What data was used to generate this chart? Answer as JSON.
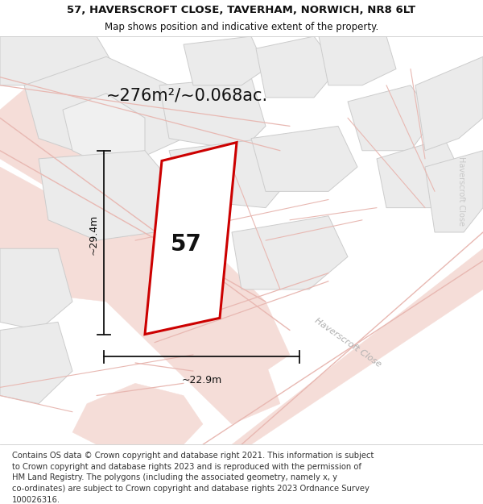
{
  "title_line1": "57, HAVERSCROFT CLOSE, TAVERHAM, NORWICH, NR8 6LT",
  "title_line2": "Map shows position and indicative extent of the property.",
  "area_text": "~276m²/~0.068ac.",
  "dim_height": "~29.4m",
  "dim_width": "~22.9m",
  "plot_number": "57",
  "footer_lines": [
    "Contains OS data © Crown copyright and database right 2021. This information is subject",
    "to Crown copyright and database rights 2023 and is reproduced with the permission of",
    "HM Land Registry. The polygons (including the associated geometry, namely x, y",
    "co-ordinates) are subject to Crown copyright and database rights 2023 Ordnance Survey",
    "100026316."
  ],
  "map_bg": "#f5eeec",
  "plot_fill": "#ffffff",
  "plot_edge": "#cc0000",
  "building_color": "#ebebeb",
  "building_edge": "#cccccc",
  "road_line_color": "#e8b8b2",
  "road_fill_color": "#f5ddd8",
  "dim_line_color": "#111111",
  "text_color": "#111111",
  "title_fontsize": 9.5,
  "subtitle_fontsize": 8.5,
  "area_fontsize": 15,
  "plot_number_fontsize": 20,
  "dim_fontsize": 9,
  "footer_fontsize": 7.2,
  "road_label_color": "#b0b0b0",
  "road_label_fontsize": 8
}
